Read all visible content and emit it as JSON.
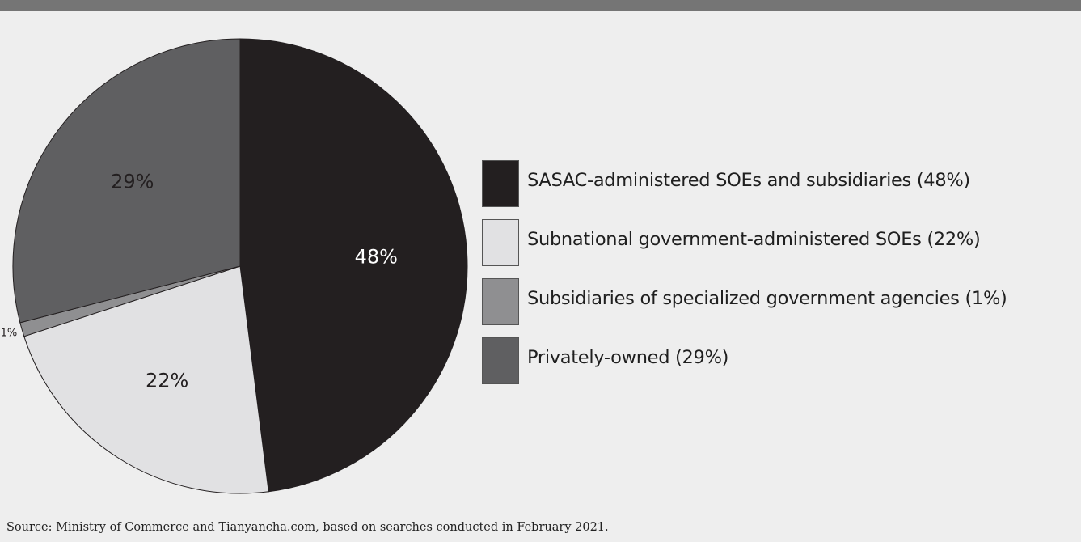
{
  "chart_data": {
    "type": "pie",
    "categories": [
      "SASAC-administered SOEs and subsidiaries (48%)",
      "Subnational government-administered SOEs (22%)",
      "Subsidiaries of specialized government agencies (1%)",
      "Privately-owned (29%)"
    ],
    "values": [
      48,
      22,
      1,
      29
    ],
    "slice_labels": [
      "48%",
      "22%",
      "1%",
      "29%"
    ],
    "colors": [
      "#231f20",
      "#e1e1e3",
      "#8f8f91",
      "#5f5f61"
    ],
    "label_colors": [
      "#ffffff",
      "#231f20",
      "#231f20",
      "#231f20"
    ],
    "start_angle": "12 o'clock",
    "direction": "clockwise",
    "legend_position": "right"
  },
  "source": "Source: Ministry of Commerce and Tianyancha.com, based on searches conducted in February 2021."
}
